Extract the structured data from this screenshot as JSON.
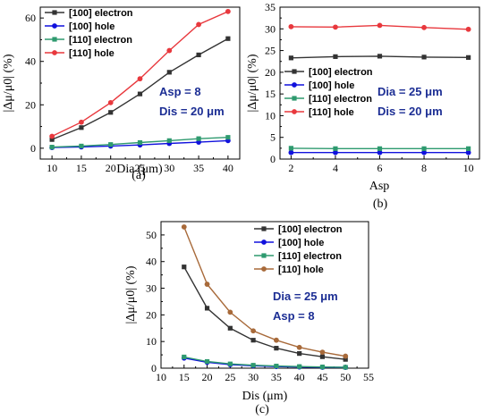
{
  "chart_data": [
    {
      "type": "line",
      "caption": "(a)",
      "xlabel": "Dia (μm)",
      "ylabel": "|Δμ/μ0| (%)",
      "xlim": [
        8,
        42
      ],
      "ylim": [
        -5,
        65
      ],
      "xticks": [
        10,
        15,
        20,
        25,
        30,
        35,
        40
      ],
      "yticks": [
        0,
        20,
        40,
        60
      ],
      "x": [
        10,
        15,
        20,
        25,
        30,
        35,
        40
      ],
      "legend_position": "top-left",
      "annotations": [
        "Asp = 8",
        "Dis = 20 μm"
      ],
      "annotation_color": "#1c2e94",
      "series": [
        {
          "name": "[100] electron",
          "color": "#333333",
          "marker": "square",
          "values": [
            4,
            9.5,
            16.5,
            25,
            35,
            43,
            50.5
          ]
        },
        {
          "name": "[100] hole",
          "color": "#1111dd",
          "marker": "circle",
          "values": [
            0.3,
            0.6,
            1.0,
            1.5,
            2.2,
            2.8,
            3.5
          ]
        },
        {
          "name": "[110] electron",
          "color": "#2e9a6f",
          "marker": "square",
          "values": [
            0.5,
            1.0,
            1.7,
            2.6,
            3.5,
            4.4,
            5.0
          ]
        },
        {
          "name": "[110] hole",
          "color": "#e8383d",
          "marker": "circle",
          "values": [
            5.5,
            12,
            21,
            32,
            45,
            57,
            63
          ]
        }
      ]
    },
    {
      "type": "line",
      "caption": "(b)",
      "xlabel": "Asp",
      "ylabel": "|Δμ/μ0| (%)",
      "xlim": [
        1.5,
        10.5
      ],
      "ylim": [
        0,
        35
      ],
      "xticks": [
        2,
        4,
        6,
        8,
        10
      ],
      "yticks": [
        0,
        5,
        10,
        15,
        20,
        25,
        30,
        35
      ],
      "x": [
        2,
        4,
        6,
        8,
        10
      ],
      "legend_position": "middle-left",
      "annotations": [
        "Dia = 25 μm",
        "Dis = 20 μm"
      ],
      "annotation_color": "#1c2e94",
      "series": [
        {
          "name": "[100] electron",
          "color": "#333333",
          "marker": "square",
          "values": [
            23.3,
            23.6,
            23.7,
            23.5,
            23.4
          ]
        },
        {
          "name": "[100] hole",
          "color": "#1111dd",
          "marker": "circle",
          "values": [
            1.5,
            1.5,
            1.5,
            1.5,
            1.5
          ]
        },
        {
          "name": "[110] electron",
          "color": "#2e9a6f",
          "marker": "square",
          "values": [
            2.5,
            2.4,
            2.4,
            2.4,
            2.4
          ]
        },
        {
          "name": "[110] hole",
          "color": "#e8383d",
          "marker": "circle",
          "values": [
            30.5,
            30.4,
            30.8,
            30.3,
            29.9
          ]
        }
      ]
    },
    {
      "type": "line",
      "caption": "(c)",
      "xlabel": "Dis (μm)",
      "ylabel": "|Δμ/μ0| (%)",
      "xlim": [
        10,
        55
      ],
      "ylim": [
        0,
        55
      ],
      "xticks": [
        10,
        15,
        20,
        25,
        30,
        35,
        40,
        45,
        50,
        55
      ],
      "yticks": [
        0,
        10,
        20,
        30,
        40,
        50
      ],
      "x": [
        15,
        20,
        25,
        30,
        35,
        40,
        45,
        50
      ],
      "legend_position": "top-right",
      "annotations": [
        "Dia = 25 μm",
        "Asp = 8"
      ],
      "annotation_color": "#1c2e94",
      "series": [
        {
          "name": "[100] electron",
          "color": "#333333",
          "marker": "square",
          "values": [
            38,
            22.5,
            15,
            10.5,
            7.5,
            5.5,
            4.3,
            3.3
          ]
        },
        {
          "name": "[100] hole",
          "color": "#1111dd",
          "marker": "circle",
          "values": [
            3.8,
            2.2,
            1.3,
            0.9,
            0.6,
            0.45,
            0.35,
            0.3
          ]
        },
        {
          "name": "[110] electron",
          "color": "#2e9a6f",
          "marker": "square",
          "values": [
            4.2,
            2.5,
            1.6,
            1.1,
            0.8,
            0.6,
            0.45,
            0.35
          ]
        },
        {
          "name": "[110] hole",
          "color": "#a86a3a",
          "marker": "circle",
          "values": [
            53,
            31.5,
            21,
            14,
            10.5,
            7.8,
            6,
            4.5
          ]
        }
      ]
    }
  ]
}
